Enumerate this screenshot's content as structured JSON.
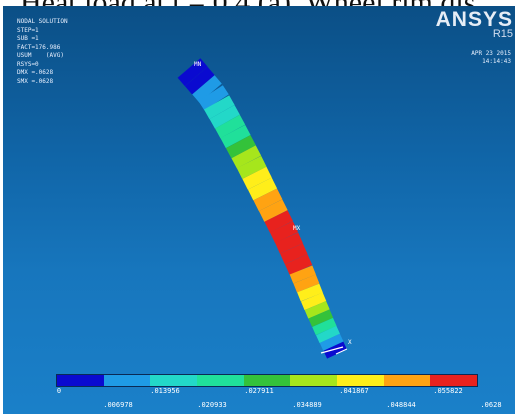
{
  "caption": {
    "text": "Heat load at t = 0.4 (a). Wheel rim dis"
  },
  "header": {
    "title": "NODAL SOLUTION",
    "lines": [
      "STEP=1",
      "SUB =1",
      "FACT=176.986",
      "USUM    (AVG)",
      "RSYS=0",
      "DMX =.0628",
      "SMX =.0628"
    ]
  },
  "brand": {
    "logo": "ANSYS",
    "release": "R15"
  },
  "timestamp": {
    "date": "APR 23 2015",
    "time": "14:14:43"
  },
  "model": {
    "min_label": "MN",
    "max_label": "MX",
    "axis_label": "X"
  },
  "legend": {
    "colors": [
      "#0a0ad0",
      "#1f9be6",
      "#23d8c8",
      "#20e09a",
      "#34c23a",
      "#a6e61c",
      "#ffee1a",
      "#ffa312",
      "#e8221e"
    ],
    "top_labels": [
      "0",
      ".013956",
      ".027911",
      ".041867",
      ".055822"
    ],
    "bottom_labels": [
      ".006978",
      ".020933",
      ".034889",
      ".048844",
      ".0628"
    ]
  }
}
